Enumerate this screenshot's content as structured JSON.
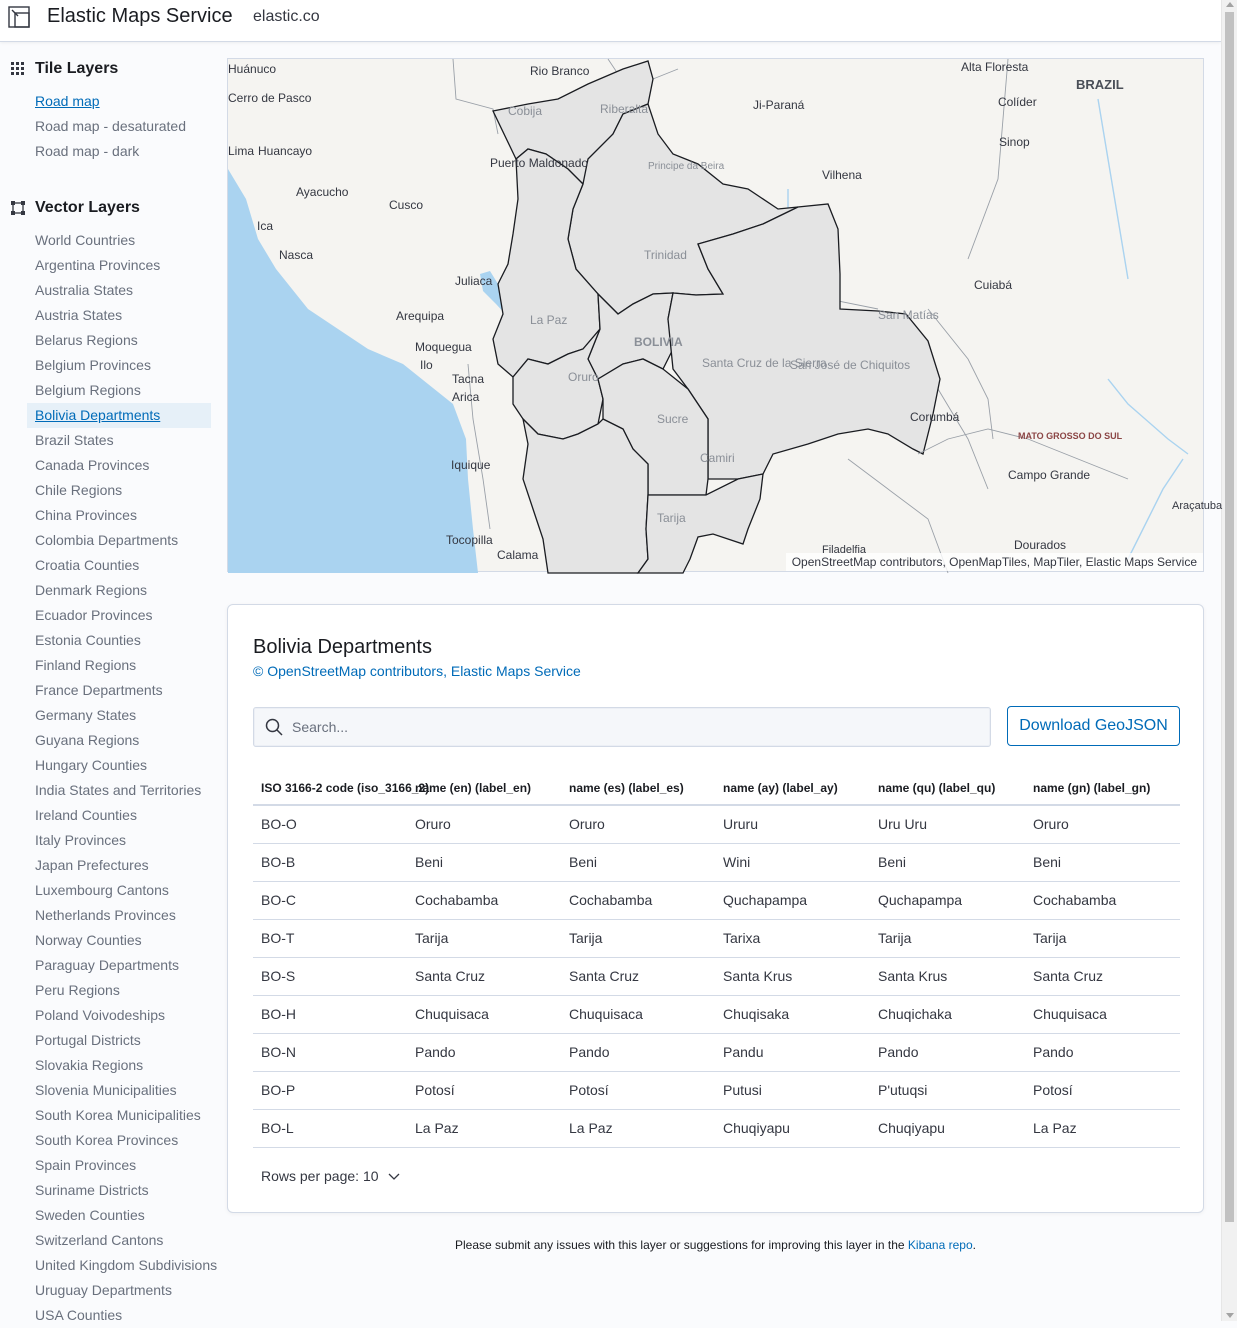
{
  "header": {
    "title": "Elastic Maps Service",
    "link": "elastic.co"
  },
  "sidebar": {
    "tile_heading": "Tile Layers",
    "tile_layers": [
      {
        "label": "Road map"
      },
      {
        "label": "Road map - desaturated"
      },
      {
        "label": "Road map - dark"
      }
    ],
    "vector_heading": "Vector Layers",
    "vector_layers": [
      {
        "label": "World Countries"
      },
      {
        "label": "Argentina Provinces"
      },
      {
        "label": "Australia States"
      },
      {
        "label": "Austria States"
      },
      {
        "label": "Belarus Regions"
      },
      {
        "label": "Belgium Provinces"
      },
      {
        "label": "Belgium Regions"
      },
      {
        "label": "Bolivia Departments"
      },
      {
        "label": "Brazil States"
      },
      {
        "label": "Canada Provinces"
      },
      {
        "label": "Chile Regions"
      },
      {
        "label": "China Provinces"
      },
      {
        "label": "Colombia Departments"
      },
      {
        "label": "Croatia Counties"
      },
      {
        "label": "Denmark Regions"
      },
      {
        "label": "Ecuador Provinces"
      },
      {
        "label": "Estonia Counties"
      },
      {
        "label": "Finland Regions"
      },
      {
        "label": "France Departments"
      },
      {
        "label": "Germany States"
      },
      {
        "label": "Guyana Regions"
      },
      {
        "label": "Hungary Counties"
      },
      {
        "label": "India States and Territories"
      },
      {
        "label": "Ireland Counties"
      },
      {
        "label": "Italy Provinces"
      },
      {
        "label": "Japan Prefectures"
      },
      {
        "label": "Luxembourg Cantons"
      },
      {
        "label": "Netherlands Provinces"
      },
      {
        "label": "Norway Counties"
      },
      {
        "label": "Paraguay Departments"
      },
      {
        "label": "Peru Regions"
      },
      {
        "label": "Poland Voivodeships"
      },
      {
        "label": "Portugal Districts"
      },
      {
        "label": "Slovakia Regions"
      },
      {
        "label": "Slovenia Municipalities"
      },
      {
        "label": "South Korea Municipalities"
      },
      {
        "label": "South Korea Provinces"
      },
      {
        "label": "Spain Provinces"
      },
      {
        "label": "Suriname Districts"
      },
      {
        "label": "Sweden Counties"
      },
      {
        "label": "Switzerland Cantons"
      },
      {
        "label": "United Kingdom Subdivisions"
      },
      {
        "label": "Uruguay Departments"
      },
      {
        "label": "USA Counties"
      }
    ]
  },
  "map": {
    "attribution": "OpenStreetMap contributors, OpenMapTiles, MapTiler, Elastic Maps Service",
    "labels": [
      "Huánuco",
      "Rio Branco",
      "Alta Floresta",
      "BRAZIL",
      "Cerro de Pasco",
      "Ji-Paraná",
      "Colíder",
      "Riberalta",
      "Cobija",
      "Sinop",
      "Lima",
      "Huancayo",
      "Puerto Maldonado",
      "Principe da Beira",
      "Vilhena",
      "Ayacucho",
      "Cusco",
      "Ica",
      "Nasca",
      "Trinidad",
      "Juliaca",
      "Cuiabá",
      "Arequipa",
      "La Paz",
      "San Matías",
      "BOLIVIA",
      "Moquegua",
      "Ilo",
      "Santa Cruz de la Sierra",
      "San José de Chiquitos",
      "Oruro",
      "Tacna",
      "Arica",
      "Sucre",
      "Corumbá",
      "MATO GROSSO DO SUL",
      "Iquique",
      "Camiri",
      "Campo Grande",
      "Tarija",
      "Tocopilla",
      "Calama",
      "Dourados",
      "Filadelfia",
      "Araçatuba"
    ]
  },
  "panel": {
    "title": "Bolivia Departments",
    "attribution": "© OpenStreetMap contributors, Elastic Maps Service",
    "search_placeholder": "Search...",
    "download_label": "Download GeoJSON",
    "columns": [
      "ISO 3166-2 code (iso_3166_2)",
      "name (en) (label_en)",
      "name (es) (label_es)",
      "name (ay) (label_ay)",
      "name (qu) (label_qu)",
      "name (gn) (label_gn)"
    ],
    "rows": [
      [
        "BO-O",
        "Oruro",
        "Oruro",
        "Ururu",
        "Uru Uru",
        "Oruro"
      ],
      [
        "BO-B",
        "Beni",
        "Beni",
        "Wini",
        "Beni",
        "Beni"
      ],
      [
        "BO-C",
        "Cochabamba",
        "Cochabamba",
        "Quchapampa",
        "Quchapampa",
        "Cochabamba"
      ],
      [
        "BO-T",
        "Tarija",
        "Tarija",
        "Tarixa",
        "Tarija",
        "Tarija"
      ],
      [
        "BO-S",
        "Santa Cruz",
        "Santa Cruz",
        "Santa Krus",
        "Santa Krus",
        "Santa Cruz"
      ],
      [
        "BO-H",
        "Chuquisaca",
        "Chuquisaca",
        "Chuqisaka",
        "Chuqichaka",
        "Chuquisaca"
      ],
      [
        "BO-N",
        "Pando",
        "Pando",
        "Pandu",
        "Pando",
        "Pando"
      ],
      [
        "BO-P",
        "Potosí",
        "Potosí",
        "Putusi",
        "P'utuqsi",
        "Potosí"
      ],
      [
        "BO-L",
        "La Paz",
        "La Paz",
        "Chuqiyapu",
        "Chuqiyapu",
        "La Paz"
      ]
    ],
    "rows_per_page": "Rows per page: 10"
  },
  "footer": {
    "text": "Please submit any issues with this layer or suggestions for improving this layer in the",
    "link": "Kibana repo",
    "period": "."
  },
  "colors": {
    "accent": "#006bb8",
    "active_bg": "#e6f0f8",
    "region_fill": "#e4e4e4",
    "water": "#aad3f0"
  }
}
